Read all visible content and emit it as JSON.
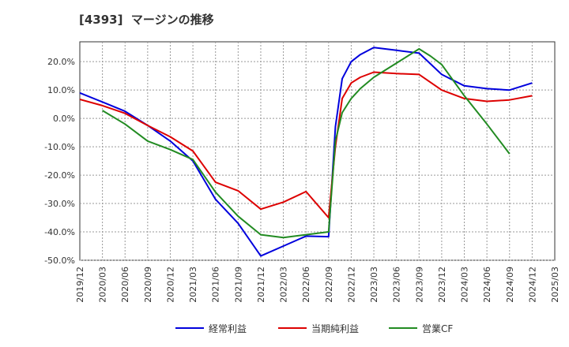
{
  "chart_data": {
    "type": "line",
    "title": "[4393]  マージンの推移",
    "xlabel": "",
    "ylabel": "",
    "ylim": [
      -50,
      27
    ],
    "y_ticks": [
      20,
      10,
      0,
      -10,
      -20,
      -30,
      -40,
      -50
    ],
    "y_tick_labels": [
      "20.0%",
      "10.0%",
      "0.0%",
      "-10.0%",
      "-20.0%",
      "-30.0%",
      "-40.0%",
      "-50.0%"
    ],
    "x_tick_labels": [
      "2019/12",
      "2020/03",
      "2020/06",
      "2020/09",
      "2020/12",
      "2021/03",
      "2021/06",
      "2021/09",
      "2021/12",
      "2022/03",
      "2022/06",
      "2022/09",
      "2022/12",
      "2023/03",
      "2023/06",
      "2023/09",
      "2023/12",
      "2024/03",
      "2024/06",
      "2024/09",
      "2024/12",
      "2025/03"
    ],
    "grid": true,
    "legend_position": "bottom",
    "series": [
      {
        "name": "経常利益",
        "color": "#0000dd",
        "points": [
          [
            0,
            9.0
          ],
          [
            1,
            5.8
          ],
          [
            2,
            2.5
          ],
          [
            3,
            -2.5
          ],
          [
            4,
            -8.0
          ],
          [
            5,
            -15.0
          ],
          [
            6,
            -28.5
          ],
          [
            7,
            -37.0
          ],
          [
            8,
            -48.5
          ],
          [
            9,
            -45.0
          ],
          [
            10,
            -41.5
          ],
          [
            11,
            -41.7
          ],
          [
            11.3,
            -3.0
          ],
          [
            11.6,
            14.0
          ],
          [
            12,
            20.0
          ],
          [
            12.4,
            22.5
          ],
          [
            13,
            25.0
          ],
          [
            14,
            24.0
          ],
          [
            15,
            23.0
          ],
          [
            16,
            15.5
          ],
          [
            17,
            11.5
          ],
          [
            18,
            10.5
          ],
          [
            19,
            10.0
          ],
          [
            20,
            12.5
          ]
        ]
      },
      {
        "name": "当期純利益",
        "color": "#dd0000",
        "points": [
          [
            0,
            6.7
          ],
          [
            1,
            4.5
          ],
          [
            2,
            1.8
          ],
          [
            3,
            -2.5
          ],
          [
            4,
            -6.5
          ],
          [
            5,
            -11.5
          ],
          [
            6,
            -22.5
          ],
          [
            7,
            -25.5
          ],
          [
            8,
            -32.0
          ],
          [
            9,
            -29.5
          ],
          [
            10,
            -25.8
          ],
          [
            11,
            -35.0
          ],
          [
            11.3,
            -10.0
          ],
          [
            11.6,
            7.0
          ],
          [
            12,
            12.5
          ],
          [
            12.4,
            14.5
          ],
          [
            13,
            16.3
          ],
          [
            14,
            15.8
          ],
          [
            15,
            15.5
          ],
          [
            16,
            10.0
          ],
          [
            17,
            7.0
          ],
          [
            18,
            6.0
          ],
          [
            19,
            6.5
          ],
          [
            20,
            8.0
          ]
        ]
      },
      {
        "name": "営業CF",
        "color": "#228b22",
        "points": [
          [
            1,
            2.8
          ],
          [
            2,
            -2.0
          ],
          [
            3,
            -8.0
          ],
          [
            4,
            -11.0
          ],
          [
            5,
            -14.5
          ],
          [
            6,
            -26.0
          ],
          [
            7,
            -34.5
          ],
          [
            8,
            -41.0
          ],
          [
            9,
            -42.0
          ],
          [
            10,
            -41.0
          ],
          [
            11,
            -40.0
          ],
          [
            11.3,
            -8.0
          ],
          [
            11.6,
            2.0
          ],
          [
            12,
            7.0
          ],
          [
            12.4,
            10.5
          ],
          [
            13,
            14.5
          ],
          [
            14,
            19.5
          ],
          [
            15,
            24.5
          ],
          [
            15.5,
            22.0
          ],
          [
            16,
            19.0
          ],
          [
            17,
            8.0
          ],
          [
            18,
            -2.0
          ],
          [
            19,
            -12.5
          ]
        ]
      }
    ]
  }
}
